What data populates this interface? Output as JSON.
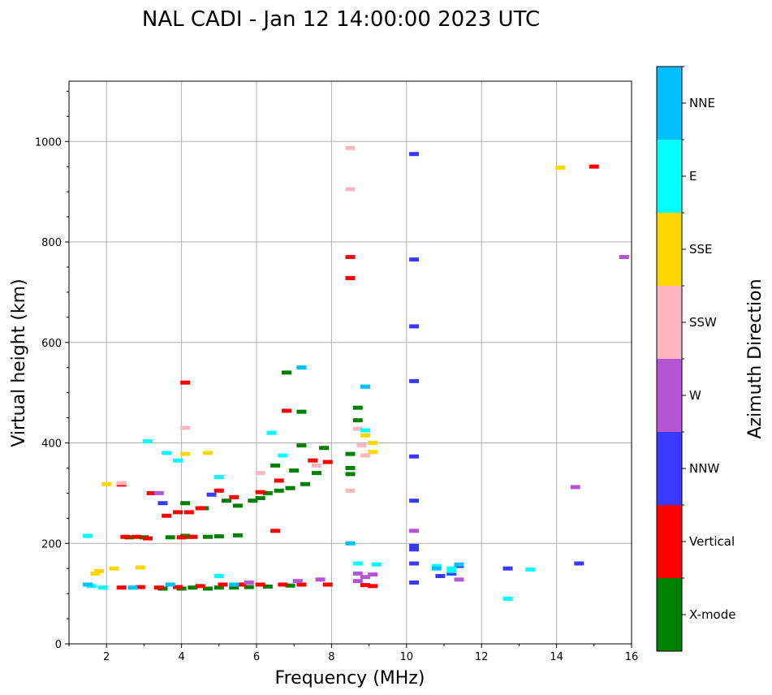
{
  "chart_data": {
    "type": "scatter",
    "title": "NAL CADI - Jan 12 14:00:00 2023 UTC",
    "xlabel": "Frequency (MHz)",
    "ylabel": "Virtual height (km)",
    "xlim": [
      1,
      16
    ],
    "ylim": [
      0,
      1120
    ],
    "xticks": [
      2,
      4,
      6,
      8,
      10,
      12,
      14,
      16
    ],
    "yticks": [
      0,
      200,
      400,
      600,
      800,
      1000
    ],
    "grid": true,
    "colorbar": {
      "label": "Azimuth Direction",
      "categories": [
        {
          "name": "X-mode",
          "color": "#008000"
        },
        {
          "name": "Vertical",
          "color": "#ff0000"
        },
        {
          "name": "NNW",
          "color": "#3a3aff"
        },
        {
          "name": "W",
          "color": "#b455d6"
        },
        {
          "name": "SSW",
          "color": "#ffb6c1"
        },
        {
          "name": "SSE",
          "color": "#ffd700"
        },
        {
          "name": "E",
          "color": "#00ffff"
        },
        {
          "name": "NNE",
          "color": "#00bfff"
        }
      ]
    },
    "series": [
      {
        "name": "X-mode",
        "points": [
          [
            2.6,
            212
          ],
          [
            3.0,
            212
          ],
          [
            3.7,
            212
          ],
          [
            4.1,
            215
          ],
          [
            4.2,
            213
          ],
          [
            4.7,
            213
          ],
          [
            5.0,
            214
          ],
          [
            5.5,
            216
          ],
          [
            3.5,
            110
          ],
          [
            4.0,
            110
          ],
          [
            4.3,
            112
          ],
          [
            4.7,
            110
          ],
          [
            5.0,
            112
          ],
          [
            5.4,
            112
          ],
          [
            5.8,
            113
          ],
          [
            6.3,
            114
          ],
          [
            6.9,
            116
          ],
          [
            4.1,
            280
          ],
          [
            4.6,
            270
          ],
          [
            5.2,
            285
          ],
          [
            5.5,
            275
          ],
          [
            5.9,
            285
          ],
          [
            6.1,
            290
          ],
          [
            6.3,
            300
          ],
          [
            6.6,
            305
          ],
          [
            6.9,
            310
          ],
          [
            7.3,
            318
          ],
          [
            7.6,
            340
          ],
          [
            7.8,
            390
          ],
          [
            6.8,
            540
          ],
          [
            7.2,
            462
          ],
          [
            7.2,
            395
          ],
          [
            6.5,
            355
          ],
          [
            7.0,
            345
          ],
          [
            8.7,
            470
          ],
          [
            8.7,
            445
          ],
          [
            8.5,
            378
          ],
          [
            8.5,
            350
          ],
          [
            8.5,
            338
          ]
        ]
      },
      {
        "name": "Vertical",
        "points": [
          [
            2.5,
            213
          ],
          [
            2.8,
            213
          ],
          [
            3.1,
            210
          ],
          [
            4.0,
            212
          ],
          [
            4.3,
            213
          ],
          [
            6.5,
            225
          ],
          [
            2.4,
            112
          ],
          [
            2.9,
            113
          ],
          [
            3.4,
            112
          ],
          [
            3.9,
            113
          ],
          [
            4.5,
            115
          ],
          [
            5.1,
            118
          ],
          [
            5.6,
            118
          ],
          [
            6.1,
            118
          ],
          [
            6.7,
            118
          ],
          [
            7.2,
            118
          ],
          [
            7.9,
            118
          ],
          [
            3.2,
            300
          ],
          [
            3.6,
            255
          ],
          [
            3.9,
            262
          ],
          [
            4.2,
            262
          ],
          [
            4.5,
            270
          ],
          [
            5.0,
            305
          ],
          [
            5.4,
            292
          ],
          [
            6.1,
            302
          ],
          [
            6.6,
            325
          ],
          [
            7.5,
            365
          ],
          [
            7.9,
            362
          ],
          [
            4.1,
            520
          ],
          [
            6.8,
            464
          ],
          [
            8.5,
            770
          ],
          [
            8.5,
            728
          ],
          [
            8.9,
            117
          ],
          [
            9.1,
            115
          ],
          [
            15.0,
            950
          ],
          [
            2.4,
            317
          ]
        ]
      },
      {
        "name": "NNW",
        "points": [
          [
            10.2,
            975
          ],
          [
            10.2,
            765
          ],
          [
            10.2,
            632
          ],
          [
            10.2,
            523
          ],
          [
            10.2,
            373
          ],
          [
            10.2,
            285
          ],
          [
            10.2,
            195
          ],
          [
            10.2,
            188
          ],
          [
            10.2,
            160
          ],
          [
            10.2,
            122
          ],
          [
            10.9,
            135
          ],
          [
            11.2,
            140
          ],
          [
            11.4,
            155
          ],
          [
            12.7,
            150
          ],
          [
            14.6,
            160
          ],
          [
            4.8,
            297
          ],
          [
            3.5,
            280
          ]
        ]
      },
      {
        "name": "W",
        "points": [
          [
            8.7,
            140
          ],
          [
            9.1,
            138
          ],
          [
            8.7,
            125
          ],
          [
            8.9,
            133
          ],
          [
            11.4,
            128
          ],
          [
            7.7,
            128
          ],
          [
            14.5,
            312
          ],
          [
            15.8,
            770
          ],
          [
            5.8,
            122
          ],
          [
            7.1,
            125
          ],
          [
            10.2,
            225
          ],
          [
            3.4,
            300
          ]
        ]
      },
      {
        "name": "SSW",
        "points": [
          [
            8.5,
            987
          ],
          [
            8.5,
            905
          ],
          [
            8.5,
            305
          ],
          [
            8.7,
            428
          ],
          [
            8.9,
            375
          ],
          [
            4.1,
            430
          ],
          [
            6.1,
            340
          ],
          [
            2.4,
            320
          ],
          [
            7.6,
            355
          ],
          [
            8.8,
            395
          ]
        ]
      },
      {
        "name": "SSE",
        "points": [
          [
            9.1,
            382
          ],
          [
            9.1,
            400
          ],
          [
            8.9,
            415
          ],
          [
            4.1,
            378
          ],
          [
            4.7,
            380
          ],
          [
            2.0,
            318
          ],
          [
            14.1,
            948
          ],
          [
            1.8,
            145
          ],
          [
            1.7,
            140
          ],
          [
            2.2,
            150
          ],
          [
            2.9,
            152
          ]
        ]
      },
      {
        "name": "E",
        "points": [
          [
            12.7,
            90
          ],
          [
            13.3,
            148
          ],
          [
            10.8,
            155
          ],
          [
            11.2,
            150
          ],
          [
            11.2,
            145
          ],
          [
            9.2,
            158
          ],
          [
            8.7,
            160
          ],
          [
            8.9,
            425
          ],
          [
            8.9,
            512
          ],
          [
            7.2,
            550
          ],
          [
            6.7,
            375
          ],
          [
            6.4,
            420
          ],
          [
            5.0,
            332
          ],
          [
            3.1,
            403
          ],
          [
            3.6,
            380
          ],
          [
            3.9,
            365
          ],
          [
            5.0,
            135
          ],
          [
            1.5,
            215
          ],
          [
            1.9,
            112
          ],
          [
            1.6,
            115
          ]
        ]
      },
      {
        "name": "NNE",
        "points": [
          [
            8.9,
            512
          ],
          [
            8.5,
            200
          ],
          [
            10.8,
            150
          ],
          [
            11.4,
            158
          ],
          [
            7.2,
            550
          ],
          [
            5.4,
            118
          ],
          [
            3.7,
            118
          ],
          [
            1.5,
            118
          ],
          [
            2.7,
            112
          ]
        ]
      }
    ]
  }
}
